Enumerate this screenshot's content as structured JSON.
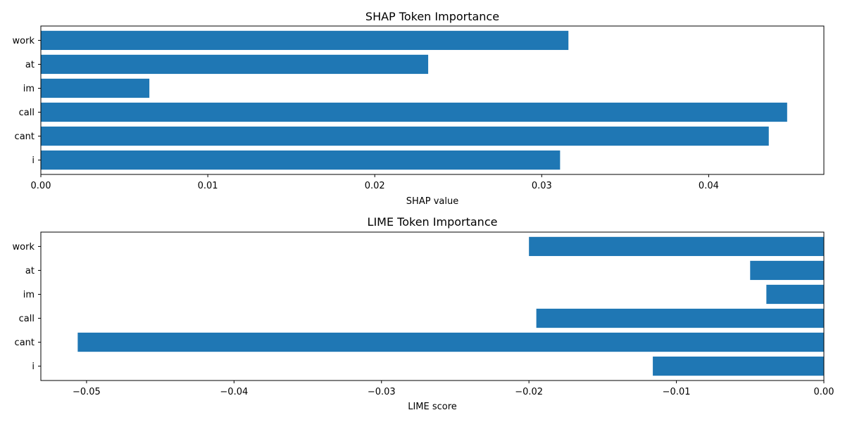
{
  "chart_data": [
    {
      "type": "bar",
      "orientation": "horizontal",
      "title": "SHAP Token Importance",
      "xlabel": "SHAP value",
      "ylabel": "",
      "categories": [
        "i",
        "cant",
        "call",
        "im",
        "at",
        "work"
      ],
      "values": [
        0.0311,
        0.0436,
        0.0447,
        0.0065,
        0.0232,
        0.0316
      ],
      "xlim": [
        0.0,
        0.0469
      ],
      "xticks": [
        0.0,
        0.01,
        0.02,
        0.03,
        0.04
      ],
      "xtick_labels": [
        "0.00",
        "0.01",
        "0.02",
        "0.03",
        "0.04"
      ],
      "grid": false,
      "color": "#1f77b4"
    },
    {
      "type": "bar",
      "orientation": "horizontal",
      "title": "LIME Token Importance",
      "xlabel": "LIME score",
      "ylabel": "",
      "categories": [
        "i",
        "cant",
        "call",
        "im",
        "at",
        "work"
      ],
      "values": [
        -0.0116,
        -0.0506,
        -0.0195,
        -0.0039,
        -0.005,
        -0.02
      ],
      "xlim": [
        -0.0531,
        0.0
      ],
      "xticks": [
        -0.05,
        -0.04,
        -0.03,
        -0.02,
        -0.01,
        0.0
      ],
      "xtick_labels": [
        "−0.05",
        "−0.04",
        "−0.03",
        "−0.02",
        "−0.01",
        "0.00"
      ],
      "grid": false,
      "color": "#1f77b4"
    }
  ]
}
